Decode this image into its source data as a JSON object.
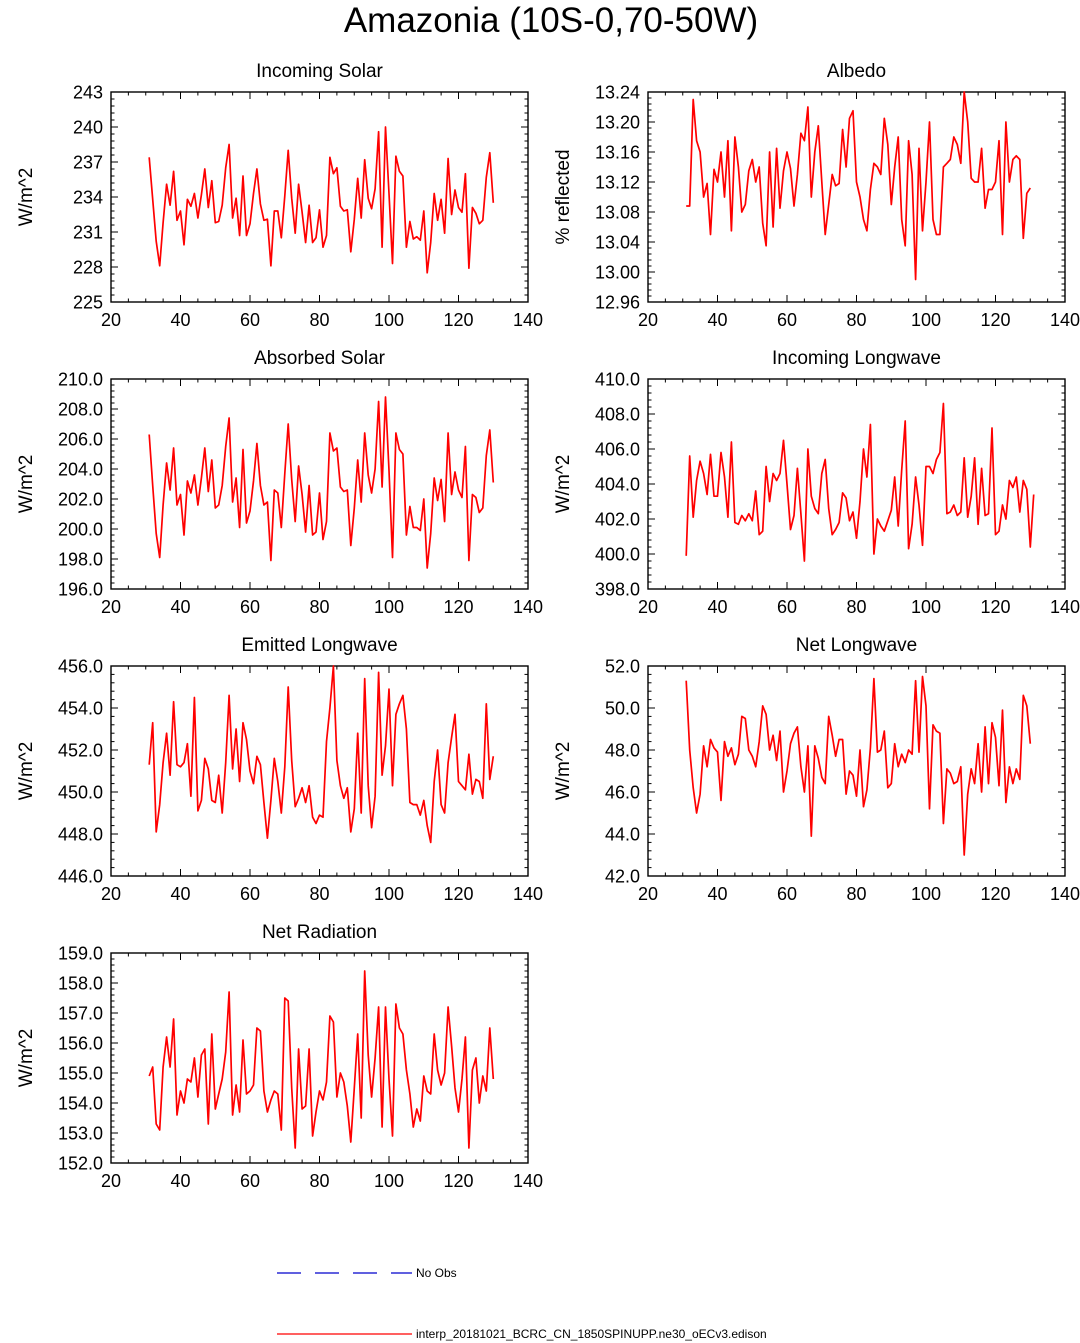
{
  "figure_title": "Amazonia (10S-0,70-50W)",
  "colors": {
    "model": "#ff0000",
    "obs": "#0000cc",
    "axis": "#000000"
  },
  "legend": {
    "obs_label": "No Obs",
    "model_label": "interp_20181021_BCRC_CN_1850SPINUPP.ne30_oECv3.edison"
  },
  "chart_data": [
    {
      "type": "line",
      "title": "Incoming Solar",
      "ylabel": "W/m^2",
      "xlim": [
        20,
        140
      ],
      "ylim": [
        225,
        243
      ],
      "xticks": [
        20,
        40,
        60,
        80,
        100,
        120,
        140
      ],
      "yticks": [
        225,
        228,
        231,
        234,
        237,
        240,
        243
      ],
      "ytick_labels": [
        "225",
        "228",
        "231",
        "234",
        "237",
        "240",
        "243"
      ],
      "x_start": 31,
      "values": [
        237.4,
        233.8,
        230.2,
        228.1,
        231.8,
        235.1,
        233.3,
        236.2,
        232.0,
        232.8,
        229.9,
        233.8,
        233.2,
        234.3,
        232.2,
        234.2,
        236.4,
        233.1,
        235.4,
        231.8,
        231.9,
        233.3,
        236.5,
        238.5,
        232.2,
        233.9,
        230.7,
        235.8,
        230.7,
        231.7,
        234.3,
        236.4,
        233.4,
        232.0,
        232.1,
        228.1,
        232.8,
        232.8,
        230.5,
        234.1,
        238.0,
        233.9,
        230.9,
        235.1,
        232.7,
        230.1,
        233.3,
        230.1,
        230.5,
        232.9,
        229.7,
        230.7,
        237.4,
        236.0,
        236.5,
        233.2,
        232.8,
        232.9,
        229.3,
        232.1,
        235.6,
        232.2,
        237.2,
        233.9,
        233.0,
        234.7,
        239.6,
        229.7,
        240.0,
        234.3,
        228.3,
        237.5,
        236.2,
        235.8,
        229.7,
        231.9,
        230.4,
        230.6,
        230.3,
        232.8,
        227.5,
        230.1,
        234.3,
        232.0,
        233.8,
        230.9,
        237.3,
        232.5,
        234.6,
        233.1,
        232.7,
        236.0,
        227.9,
        233.1,
        232.6,
        231.7,
        232.0,
        235.7,
        237.8,
        233.5
      ]
    },
    {
      "type": "line",
      "title": "Albedo",
      "ylabel": "% reflected",
      "xlim": [
        20,
        140
      ],
      "ylim": [
        12.96,
        13.24
      ],
      "xticks": [
        20,
        40,
        60,
        80,
        100,
        120,
        140
      ],
      "yticks": [
        12.96,
        13.0,
        13.04,
        13.08,
        13.12,
        13.16,
        13.2,
        13.24
      ],
      "ytick_labels": [
        "12.96",
        "13.00",
        "13.04",
        "13.08",
        "13.12",
        "13.16",
        "13.20",
        "13.24"
      ],
      "x_start": 31,
      "values": [
        13.088,
        13.088,
        13.23,
        13.175,
        13.16,
        13.1,
        13.118,
        13.05,
        13.137,
        13.12,
        13.16,
        13.1,
        13.175,
        13.055,
        13.18,
        13.14,
        13.08,
        13.09,
        13.135,
        13.15,
        13.12,
        13.14,
        13.065,
        13.035,
        13.16,
        13.06,
        13.165,
        13.085,
        13.135,
        13.16,
        13.138,
        13.088,
        13.13,
        13.185,
        13.175,
        13.22,
        13.1,
        13.16,
        13.195,
        13.12,
        13.05,
        13.09,
        13.13,
        13.115,
        13.118,
        13.19,
        13.14,
        13.205,
        13.215,
        13.12,
        13.1,
        13.07,
        13.055,
        13.11,
        13.145,
        13.14,
        13.13,
        13.205,
        13.17,
        13.09,
        13.14,
        13.18,
        13.07,
        13.035,
        13.175,
        13.13,
        12.99,
        13.165,
        13.055,
        13.12,
        13.2,
        13.07,
        13.05,
        13.05,
        13.14,
        13.145,
        13.15,
        13.18,
        13.17,
        13.145,
        13.24,
        13.2,
        13.125,
        13.12,
        13.12,
        13.165,
        13.085,
        13.11,
        13.11,
        13.12,
        13.175,
        13.05,
        13.2,
        13.12,
        13.15,
        13.155,
        13.15,
        13.045,
        13.105,
        13.112
      ]
    },
    {
      "type": "line",
      "title": "Absorbed Solar",
      "ylabel": "W/m^2",
      "xlim": [
        20,
        140
      ],
      "ylim": [
        196,
        210
      ],
      "xticks": [
        20,
        40,
        60,
        80,
        100,
        120,
        140
      ],
      "yticks": [
        196,
        198,
        200,
        202,
        204,
        206,
        208,
        210
      ],
      "ytick_labels": [
        "196.0",
        "198.0",
        "200.0",
        "202.0",
        "204.0",
        "206.0",
        "208.0",
        "210.0"
      ],
      "x_start": 31,
      "values": [
        206.3,
        202.9,
        199.7,
        198.1,
        201.6,
        204.4,
        202.6,
        205.4,
        201.6,
        202.3,
        199.6,
        203.2,
        202.4,
        203.6,
        201.6,
        203.4,
        205.4,
        202.5,
        204.6,
        201.4,
        201.6,
        202.9,
        205.5,
        207.4,
        201.8,
        203.4,
        200.1,
        205.3,
        200.4,
        201.2,
        203.2,
        205.7,
        202.9,
        201.6,
        201.8,
        197.9,
        202.6,
        202.4,
        200.1,
        203.7,
        207.0,
        203.3,
        200.5,
        204.2,
        202.3,
        199.8,
        202.9,
        199.6,
        199.8,
        202.4,
        199.3,
        200.5,
        206.4,
        205.2,
        205.4,
        202.8,
        202.5,
        202.6,
        198.9,
        201.4,
        204.6,
        201.8,
        206.4,
        203.6,
        202.4,
        204.0,
        208.5,
        202.8,
        208.8,
        203.9,
        198.1,
        206.4,
        205.3,
        205.0,
        199.6,
        201.5,
        200.1,
        200.1,
        199.9,
        202.0,
        197.4,
        199.7,
        203.4,
        201.9,
        203.3,
        200.5,
        206.4,
        202.3,
        203.8,
        202.6,
        202.1,
        205.5,
        197.9,
        202.3,
        202.1,
        201.1,
        201.4,
        204.9,
        206.6,
        203.1
      ]
    },
    {
      "type": "line",
      "title": "Incoming Longwave",
      "ylabel": "W/m^2",
      "xlim": [
        20,
        140
      ],
      "ylim": [
        398,
        410
      ],
      "xticks": [
        20,
        40,
        60,
        80,
        100,
        120,
        140
      ],
      "yticks": [
        398,
        400,
        402,
        404,
        406,
        408,
        410
      ],
      "ytick_labels": [
        "398.0",
        "400.0",
        "402.0",
        "404.0",
        "406.0",
        "408.0",
        "410.0"
      ],
      "x_start": 31,
      "values": [
        399.9,
        405.6,
        402.1,
        404.2,
        405.3,
        404.6,
        403.4,
        405.7,
        403.3,
        403.3,
        405.8,
        404.4,
        402.1,
        406.4,
        401.8,
        401.7,
        402.2,
        401.9,
        402.3,
        401.9,
        403.6,
        401.1,
        401.3,
        405.0,
        403.0,
        404.6,
        404.2,
        404.6,
        406.5,
        404.0,
        401.4,
        402.2,
        404.9,
        402.3,
        399.6,
        406.0,
        403.3,
        402.6,
        402.3,
        404.6,
        405.4,
        402.6,
        401.1,
        401.4,
        401.8,
        403.5,
        403.2,
        401.9,
        402.4,
        400.9,
        403.0,
        406.0,
        404.4,
        407.4,
        400.0,
        402.0,
        401.6,
        401.3,
        401.9,
        402.5,
        404.4,
        401.6,
        404.8,
        407.6,
        400.3,
        401.7,
        404.4,
        402.8,
        400.5,
        405.0,
        405.0,
        404.6,
        405.4,
        405.8,
        408.6,
        402.3,
        402.4,
        402.8,
        402.2,
        402.4,
        405.5,
        402.1,
        403.3,
        405.5,
        401.7,
        404.9,
        402.2,
        402.3,
        407.2,
        401.1,
        401.3,
        402.8,
        402.0,
        404.2,
        403.8,
        404.4,
        402.4,
        404.2,
        403.7,
        400.4,
        403.4
      ]
    },
    {
      "type": "line",
      "title": "Emitted Longwave",
      "ylabel": "W/m^2",
      "xlim": [
        20,
        140
      ],
      "ylim": [
        446,
        456
      ],
      "xticks": [
        20,
        40,
        60,
        80,
        100,
        120,
        140
      ],
      "yticks": [
        446,
        448,
        450,
        452,
        454,
        456
      ],
      "ytick_labels": [
        "446.0",
        "448.0",
        "450.0",
        "452.0",
        "454.0",
        "456.0"
      ],
      "x_start": 31,
      "values": [
        451.3,
        453.3,
        448.1,
        449.4,
        451.4,
        452.8,
        450.8,
        454.3,
        451.3,
        451.2,
        451.4,
        452.3,
        449.8,
        454.5,
        449.1,
        449.6,
        451.6,
        451.1,
        449.6,
        449.5,
        450.8,
        449.0,
        451.4,
        454.6,
        451.1,
        453.0,
        450.5,
        453.3,
        452.5,
        451.0,
        450.4,
        451.7,
        451.3,
        449.5,
        447.8,
        449.6,
        451.6,
        450.5,
        449.0,
        451.2,
        455.0,
        451.5,
        449.3,
        449.7,
        450.2,
        449.5,
        450.3,
        448.8,
        448.5,
        448.9,
        448.8,
        452.4,
        454.0,
        456.0,
        451.5,
        450.3,
        449.7,
        450.2,
        448.1,
        449.2,
        452.8,
        449.0,
        455.4,
        450.3,
        448.3,
        449.8,
        455.7,
        450.8,
        452.2,
        454.9,
        450.3,
        453.7,
        454.2,
        454.6,
        453.0,
        449.5,
        449.4,
        449.4,
        448.9,
        449.6,
        448.4,
        447.6,
        450.5,
        452.0,
        449.4,
        449.0,
        451.4,
        452.6,
        453.7,
        450.5,
        450.3,
        450.1,
        451.8,
        449.9,
        450.6,
        450.5,
        449.7,
        454.2,
        450.6,
        451.7
      ]
    },
    {
      "type": "line",
      "title": "Net Longwave",
      "ylabel": "W/m^2",
      "xlim": [
        20,
        140
      ],
      "ylim": [
        42,
        52
      ],
      "xticks": [
        20,
        40,
        60,
        80,
        100,
        120,
        140
      ],
      "yticks": [
        42,
        44,
        46,
        48,
        50,
        52
      ],
      "ytick_labels": [
        "42.0",
        "44.0",
        "46.0",
        "48.0",
        "50.0",
        "52.0"
      ],
      "x_start": 31,
      "values": [
        51.3,
        48.0,
        46.2,
        45.0,
        45.9,
        48.2,
        47.2,
        48.5,
        48.1,
        47.9,
        45.6,
        48.4,
        47.7,
        48.1,
        47.3,
        47.8,
        49.6,
        49.5,
        48.0,
        47.7,
        47.2,
        48.4,
        50.1,
        49.7,
        48.0,
        48.7,
        47.5,
        48.9,
        46.0,
        47.0,
        48.3,
        48.8,
        49.1,
        47.2,
        46.0,
        48.2,
        43.9,
        48.2,
        47.6,
        46.7,
        46.4,
        49.6,
        48.7,
        47.7,
        48.5,
        48.5,
        45.9,
        47.0,
        46.8,
        45.8,
        48.0,
        45.3,
        46.1,
        48.1,
        51.4,
        47.9,
        48.0,
        48.9,
        46.2,
        46.4,
        48.3,
        47.2,
        47.8,
        47.4,
        48.0,
        47.8,
        51.3,
        47.9,
        51.5,
        50.1,
        45.2,
        49.2,
        48.9,
        48.8,
        44.5,
        47.1,
        46.9,
        46.4,
        46.5,
        47.2,
        43.0,
        45.9,
        47.1,
        46.4,
        48.3,
        46.0,
        49.1,
        46.4,
        49.3,
        48.6,
        46.3,
        49.9,
        45.5,
        47.2,
        46.4,
        47.1,
        46.6,
        50.6,
        50.1,
        48.3
      ]
    },
    {
      "type": "line",
      "title": "Net Radiation",
      "ylabel": "W/m^2",
      "xlim": [
        20,
        140
      ],
      "ylim": [
        152,
        159
      ],
      "xticks": [
        20,
        40,
        60,
        80,
        100,
        120,
        140
      ],
      "yticks": [
        152,
        153,
        154,
        155,
        156,
        157,
        158,
        159
      ],
      "ytick_labels": [
        "152.0",
        "153.0",
        "154.0",
        "155.0",
        "156.0",
        "157.0",
        "158.0",
        "159.0"
      ],
      "x_start": 31,
      "values": [
        154.9,
        155.2,
        153.3,
        153.1,
        155.2,
        156.2,
        155.2,
        156.8,
        153.6,
        154.4,
        154.0,
        154.8,
        154.7,
        155.5,
        154.2,
        155.6,
        155.8,
        153.3,
        156.3,
        153.8,
        154.3,
        154.8,
        155.7,
        157.7,
        153.6,
        154.6,
        153.7,
        156.1,
        154.3,
        154.4,
        154.6,
        156.5,
        156.4,
        154.4,
        153.7,
        154.1,
        154.4,
        154.3,
        153.1,
        157.5,
        157.4,
        154.5,
        152.5,
        155.8,
        153.8,
        153.9,
        155.8,
        152.9,
        153.7,
        154.4,
        154.1,
        154.7,
        156.9,
        156.7,
        154.2,
        155.0,
        154.7,
        153.9,
        152.7,
        154.5,
        156.3,
        153.5,
        158.4,
        155.6,
        154.2,
        155.5,
        157.2,
        153.2,
        157.2,
        154.8,
        152.9,
        157.3,
        156.5,
        156.3,
        155.1,
        154.3,
        153.2,
        153.8,
        153.4,
        154.9,
        154.4,
        154.3,
        156.3,
        155.1,
        154.6,
        155.0,
        157.2,
        155.9,
        154.5,
        153.7,
        154.8,
        156.2,
        152.5,
        155.1,
        155.5,
        154.0,
        154.9,
        154.4,
        156.5,
        154.8
      ]
    }
  ]
}
